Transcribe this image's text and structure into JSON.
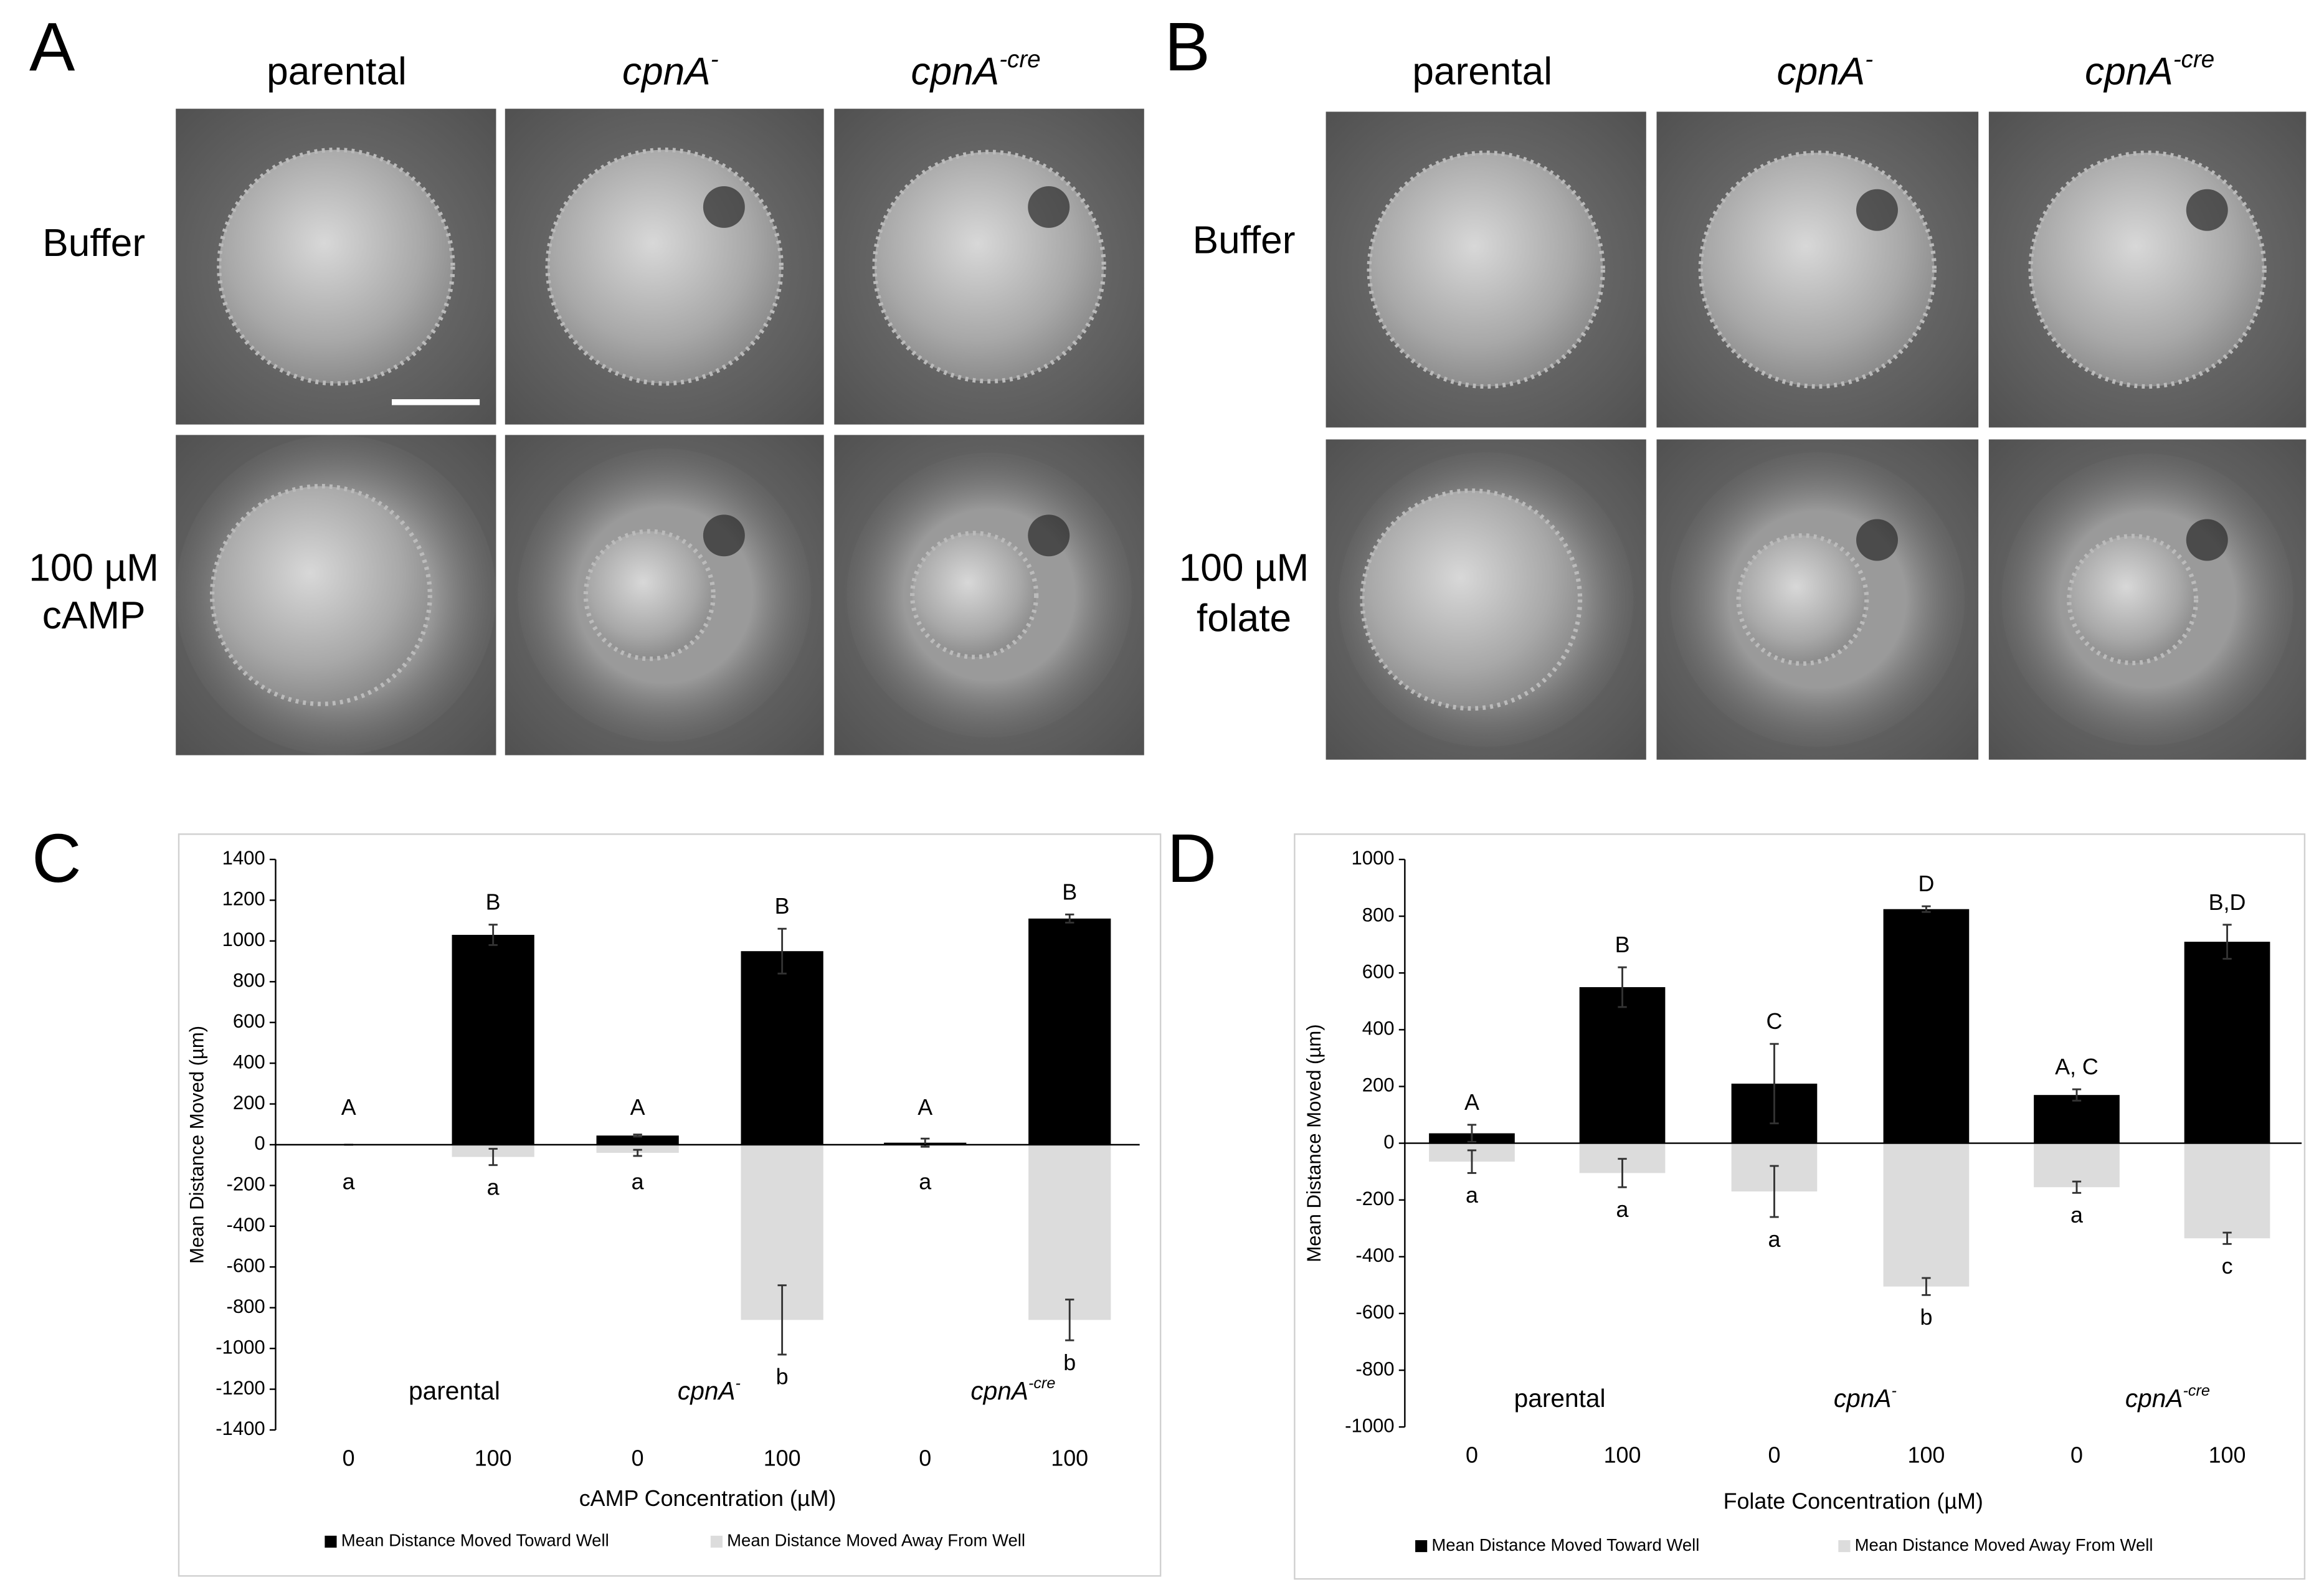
{
  "panels": [
    {
      "letter": "A",
      "col_headers": [
        {
          "text": "parental"
        },
        {
          "text": "cpnA",
          "sup": "-"
        },
        {
          "text": "cpnA",
          "sup": "-cre"
        }
      ],
      "row_labels": [
        [
          "Buffer"
        ],
        [
          "100 µM",
          "cAMP"
        ]
      ]
    },
    {
      "letter": "B",
      "col_headers": [
        {
          "text": "parental"
        },
        {
          "text": "cpnA",
          "sup": "-"
        },
        {
          "text": "cpnA",
          "sup": "-cre"
        }
      ],
      "row_labels": [
        [
          "Buffer"
        ],
        [
          "100 µM",
          "folate"
        ]
      ]
    }
  ],
  "chart_data": [
    {
      "type": "bar",
      "panel_letter": "C",
      "categories": [
        "0",
        "100",
        "0",
        "100",
        "0",
        "100"
      ],
      "group_labels": [
        {
          "text": "parental"
        },
        {
          "text": "cpnA",
          "sup": "-"
        },
        {
          "text": "cpnA",
          "sup": "-cre"
        }
      ],
      "x_label": "cAMP Concentration (µM)",
      "y_label": "Mean Distance Moved (µm)",
      "ylim": [
        -1400,
        1400
      ],
      "yticks": [
        -1400,
        -1200,
        -1000,
        -800,
        -600,
        -400,
        -200,
        0,
        200,
        400,
        600,
        800,
        1000,
        1200,
        1400
      ],
      "legend": "bottom",
      "series": [
        {
          "name": "Mean Distance Moved Toward Well",
          "color": "#000000",
          "values": [
            0,
            1030,
            45,
            950,
            10,
            1110
          ],
          "errors": [
            0,
            50,
            5,
            110,
            20,
            20
          ],
          "letters": [
            "A",
            "B",
            "A",
            "B",
            "A",
            "B"
          ]
        },
        {
          "name": "Mean Distance Moved Away From Well",
          "color": "#dcdcdc",
          "values": [
            0,
            -60,
            -40,
            -860,
            0,
            -860
          ],
          "errors": [
            0,
            40,
            15,
            170,
            0,
            100
          ],
          "letters": [
            "a",
            "a",
            "a",
            "b",
            "a",
            "b"
          ]
        }
      ]
    },
    {
      "type": "bar",
      "panel_letter": "D",
      "categories": [
        "0",
        "100",
        "0",
        "100",
        "0",
        "100"
      ],
      "group_labels": [
        {
          "text": "parental"
        },
        {
          "text": "cpnA",
          "sup": "-"
        },
        {
          "text": "cpnA",
          "sup": "-cre"
        }
      ],
      "x_label": "Folate Concentration (µM)",
      "y_label": "Mean Distance Moved (µm)",
      "ylim": [
        -1000,
        1000
      ],
      "yticks": [
        -1000,
        -800,
        -600,
        -400,
        -200,
        0,
        200,
        400,
        600,
        800,
        1000
      ],
      "legend": "bottom",
      "series": [
        {
          "name": "Mean Distance Moved Toward Well",
          "color": "#000000",
          "values": [
            35,
            550,
            210,
            825,
            170,
            710
          ],
          "errors": [
            30,
            70,
            140,
            10,
            20,
            60
          ],
          "letters": [
            "A",
            "B",
            "C",
            "D",
            "A, C",
            "B,D"
          ]
        },
        {
          "name": "Mean Distance Moved Away From Well",
          "color": "#dcdcdc",
          "values": [
            -65,
            -105,
            -170,
            -505,
            -155,
            -335
          ],
          "errors": [
            40,
            50,
            90,
            30,
            20,
            20
          ],
          "letters": [
            "a",
            "a",
            "a",
            "b",
            "a",
            "c"
          ]
        }
      ]
    }
  ]
}
